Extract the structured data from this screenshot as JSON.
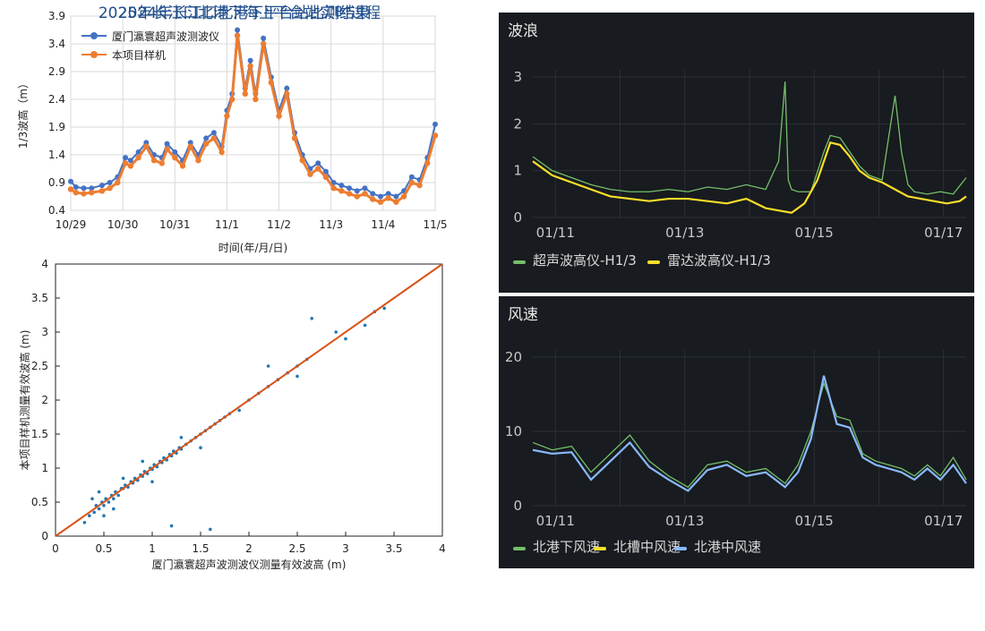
{
  "captions": {
    "left": "2024年长江口北港下平台站比测结果",
    "right": "2025年长江口北港下海上平台站实时过程"
  },
  "chart_data": [
    {
      "id": "timeseries-2024",
      "type": "line",
      "xlabel": "时间(年/月/日)",
      "ylabel": "1/3波高（m）",
      "ylim": [
        0.4,
        3.9
      ],
      "yticks": [
        "0.4",
        "0.9",
        "1.4",
        "1.9",
        "2.4",
        "2.9",
        "3.4",
        "3.9"
      ],
      "xticks": [
        "10/29",
        "10/30",
        "10/31",
        "11/1",
        "11/2",
        "11/3",
        "11/4",
        "11/5"
      ],
      "legend_position": "top-left",
      "grid": true,
      "colors": {
        "series1": "#4472c4",
        "series2": "#ed7d31"
      },
      "series": [
        {
          "name": "厦门瀛寰超声波测波仪",
          "x": [
            0,
            0.1,
            0.25,
            0.4,
            0.6,
            0.75,
            0.9,
            1.05,
            1.15,
            1.3,
            1.45,
            1.6,
            1.75,
            1.85,
            2.0,
            2.15,
            2.3,
            2.45,
            2.6,
            2.75,
            2.9,
            3.0,
            3.1,
            3.2,
            3.35,
            3.45,
            3.55,
            3.7,
            3.85,
            4.0,
            4.15,
            4.3,
            4.45,
            4.6,
            4.75,
            4.9,
            5.05,
            5.2,
            5.35,
            5.5,
            5.65,
            5.8,
            5.95,
            6.1,
            6.25,
            6.4,
            6.55,
            6.7,
            6.85,
            7.0
          ],
          "y": [
            0.92,
            0.82,
            0.8,
            0.8,
            0.85,
            0.9,
            1.0,
            1.35,
            1.3,
            1.45,
            1.62,
            1.4,
            1.35,
            1.6,
            1.45,
            1.3,
            1.62,
            1.4,
            1.7,
            1.8,
            1.55,
            2.2,
            2.5,
            3.65,
            2.6,
            3.1,
            2.5,
            3.5,
            2.8,
            2.2,
            2.6,
            1.8,
            1.4,
            1.15,
            1.25,
            1.1,
            0.9,
            0.85,
            0.8,
            0.75,
            0.8,
            0.7,
            0.65,
            0.7,
            0.65,
            0.75,
            1.0,
            0.95,
            1.35,
            1.95
          ]
        },
        {
          "name": "本项目样机",
          "x": [
            0,
            0.1,
            0.25,
            0.4,
            0.6,
            0.75,
            0.9,
            1.05,
            1.15,
            1.3,
            1.45,
            1.6,
            1.75,
            1.85,
            2.0,
            2.15,
            2.3,
            2.45,
            2.6,
            2.75,
            2.9,
            3.0,
            3.1,
            3.2,
            3.35,
            3.45,
            3.55,
            3.7,
            3.85,
            4.0,
            4.15,
            4.3,
            4.45,
            4.6,
            4.75,
            4.9,
            5.05,
            5.2,
            5.35,
            5.5,
            5.65,
            5.8,
            5.95,
            6.1,
            6.25,
            6.4,
            6.55,
            6.7,
            6.85,
            7.0
          ],
          "y": [
            0.78,
            0.72,
            0.7,
            0.72,
            0.75,
            0.8,
            0.9,
            1.25,
            1.2,
            1.35,
            1.55,
            1.3,
            1.25,
            1.5,
            1.35,
            1.2,
            1.55,
            1.3,
            1.6,
            1.7,
            1.45,
            2.1,
            2.4,
            3.55,
            2.5,
            3.0,
            2.4,
            3.4,
            2.7,
            2.1,
            2.5,
            1.7,
            1.3,
            1.05,
            1.15,
            1.0,
            0.8,
            0.75,
            0.7,
            0.65,
            0.7,
            0.6,
            0.55,
            0.62,
            0.55,
            0.65,
            0.9,
            0.85,
            1.25,
            1.75
          ]
        }
      ]
    },
    {
      "id": "scatter-2024",
      "type": "scatter",
      "xlabel": "厦门瀛寰超声波测波仪测量有效波高 (m)",
      "ylabel": "本项目样机测量有效波高 (m)",
      "xlim": [
        0,
        4
      ],
      "ylim": [
        0,
        4
      ],
      "xticks": [
        "0",
        "0.5",
        "1",
        "1.5",
        "2",
        "2.5",
        "3",
        "3.5",
        "4"
      ],
      "yticks": [
        "0",
        "0.5",
        "1",
        "1.5",
        "2",
        "2.5",
        "3",
        "3.5",
        "4"
      ],
      "colors": {
        "points": "#1f77b4",
        "fit": "#d95319"
      },
      "fit_line": {
        "x": [
          0,
          4
        ],
        "y": [
          0,
          4
        ]
      },
      "points": {
        "x": [
          0.3,
          0.35,
          0.4,
          0.42,
          0.45,
          0.48,
          0.5,
          0.52,
          0.55,
          0.58,
          0.6,
          0.62,
          0.65,
          0.68,
          0.7,
          0.72,
          0.75,
          0.78,
          0.8,
          0.82,
          0.85,
          0.88,
          0.9,
          0.92,
          0.95,
          0.98,
          1.0,
          1.02,
          1.05,
          1.08,
          1.1,
          1.12,
          1.15,
          1.18,
          1.2,
          1.22,
          1.25,
          1.28,
          1.3,
          1.35,
          1.4,
          1.45,
          1.5,
          1.55,
          1.6,
          1.65,
          1.7,
          1.75,
          1.8,
          1.9,
          2.0,
          2.1,
          2.2,
          2.3,
          2.4,
          2.5,
          2.6,
          2.65,
          2.9,
          3.0,
          3.2,
          3.3,
          3.4,
          1.6,
          1.2,
          0.45,
          0.6,
          0.7,
          0.38,
          0.5,
          0.9,
          1.0,
          1.3,
          1.5,
          2.2,
          2.5
        ],
        "y": [
          0.2,
          0.3,
          0.35,
          0.45,
          0.4,
          0.5,
          0.45,
          0.55,
          0.5,
          0.6,
          0.55,
          0.65,
          0.6,
          0.7,
          0.7,
          0.75,
          0.72,
          0.8,
          0.78,
          0.85,
          0.82,
          0.9,
          0.88,
          0.95,
          0.92,
          1.0,
          0.98,
          1.05,
          1.02,
          1.1,
          1.08,
          1.15,
          1.12,
          1.2,
          1.18,
          1.25,
          1.22,
          1.3,
          1.28,
          1.35,
          1.4,
          1.45,
          1.5,
          1.55,
          1.6,
          1.65,
          1.7,
          1.75,
          1.8,
          1.85,
          2.0,
          2.1,
          2.2,
          2.3,
          2.4,
          2.5,
          2.6,
          3.2,
          3.0,
          2.9,
          3.1,
          3.3,
          3.35,
          0.1,
          0.15,
          0.65,
          0.4,
          0.85,
          0.55,
          0.3,
          1.1,
          0.8,
          1.45,
          1.3,
          2.5,
          2.35
        ]
      }
    },
    {
      "id": "wave-2025",
      "type": "line",
      "title": "波浪",
      "ylim": [
        0,
        3
      ],
      "yticks": [
        "0",
        "1",
        "2",
        "3"
      ],
      "xticks": [
        "01/11",
        "01/13",
        "01/15",
        "01/17"
      ],
      "legend_position": "bottom-left",
      "grid": true,
      "series": [
        {
          "name": "超声波高仪-H1/3",
          "color": "#73bf69",
          "x": [
            0,
            0.3,
            0.6,
            0.9,
            1.2,
            1.5,
            1.8,
            2.1,
            2.4,
            2.7,
            3.0,
            3.3,
            3.6,
            3.8,
            3.9,
            3.95,
            4.0,
            4.1,
            4.3,
            4.5,
            4.6,
            4.75,
            4.9,
            5.05,
            5.2,
            5.4,
            5.6,
            5.7,
            5.8,
            5.9,
            6.1,
            6.3,
            6.5,
            6.7
          ],
          "y": [
            1.3,
            1.0,
            0.85,
            0.7,
            0.6,
            0.55,
            0.55,
            0.6,
            0.55,
            0.65,
            0.6,
            0.7,
            0.6,
            1.2,
            2.9,
            0.8,
            0.6,
            0.55,
            0.55,
            1.4,
            1.75,
            1.7,
            1.4,
            1.1,
            0.9,
            0.8,
            2.6,
            1.4,
            0.7,
            0.55,
            0.5,
            0.55,
            0.5,
            0.85
          ]
        },
        {
          "name": "雷达波高仪-H1/3",
          "color": "#fade2a",
          "x": [
            0,
            0.3,
            0.6,
            0.9,
            1.2,
            1.5,
            1.8,
            2.1,
            2.4,
            2.7,
            3.0,
            3.3,
            3.6,
            3.8,
            4.0,
            4.2,
            4.4,
            4.6,
            4.75,
            4.9,
            5.05,
            5.2,
            5.4,
            5.6,
            5.8,
            6.0,
            6.2,
            6.4,
            6.6,
            6.7
          ],
          "y": [
            1.2,
            0.9,
            0.75,
            0.6,
            0.45,
            0.4,
            0.35,
            0.4,
            0.4,
            0.35,
            0.3,
            0.4,
            0.2,
            0.15,
            0.1,
            0.3,
            0.8,
            1.6,
            1.55,
            1.3,
            1.0,
            0.85,
            0.75,
            0.6,
            0.45,
            0.4,
            0.35,
            0.3,
            0.35,
            0.45
          ]
        }
      ]
    },
    {
      "id": "wind-2025",
      "type": "line",
      "title": "风速",
      "ylim": [
        0,
        20
      ],
      "yticks": [
        "0",
        "10",
        "20"
      ],
      "xticks": [
        "01/11",
        "01/13",
        "01/15",
        "01/17"
      ],
      "legend_position": "bottom-left",
      "grid": true,
      "series": [
        {
          "name": "北港下风速",
          "color": "#73bf69",
          "x": [
            0,
            0.3,
            0.6,
            0.9,
            1.2,
            1.5,
            1.8,
            2.1,
            2.4,
            2.7,
            3.0,
            3.3,
            3.6,
            3.9,
            4.1,
            4.3,
            4.5,
            4.7,
            4.9,
            5.1,
            5.3,
            5.5,
            5.7,
            5.9,
            6.1,
            6.3,
            6.5,
            6.7
          ],
          "y": [
            8.5,
            7.5,
            8.0,
            4.5,
            7.0,
            9.5,
            6.0,
            4.0,
            2.5,
            5.5,
            6.0,
            4.5,
            5.0,
            3.0,
            5.5,
            10.0,
            16.5,
            12.0,
            11.5,
            7.0,
            6.0,
            5.5,
            5.0,
            4.0,
            5.5,
            4.0,
            6.5,
            3.5
          ]
        },
        {
          "name": "北槽中风速",
          "color": "#fade2a",
          "x": [],
          "y": []
        },
        {
          "name": "北港中风速",
          "color": "#8ab8ff",
          "x": [
            0,
            0.3,
            0.6,
            0.9,
            1.2,
            1.5,
            1.8,
            2.1,
            2.4,
            2.7,
            3.0,
            3.3,
            3.6,
            3.9,
            4.1,
            4.3,
            4.5,
            4.7,
            4.9,
            5.1,
            5.3,
            5.5,
            5.7,
            5.9,
            6.1,
            6.3,
            6.5,
            6.7
          ],
          "y": [
            7.5,
            7.0,
            7.2,
            3.5,
            6.0,
            8.5,
            5.2,
            3.5,
            2.0,
            4.8,
            5.5,
            4.0,
            4.5,
            2.5,
            4.5,
            9.0,
            17.5,
            11.0,
            10.5,
            6.5,
            5.5,
            5.0,
            4.5,
            3.5,
            5.0,
            3.5,
            5.5,
            3.0
          ]
        }
      ]
    }
  ]
}
